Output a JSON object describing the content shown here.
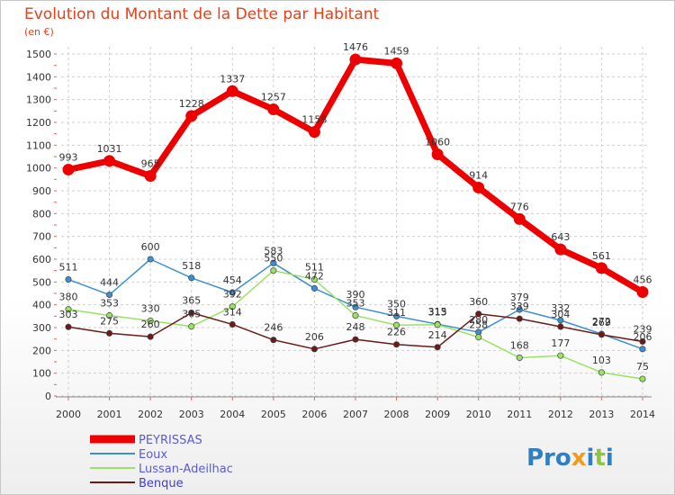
{
  "chart_data": {
    "type": "line",
    "title": "Evolution du Montant de la Dette par Habitant",
    "subtitle": "(en €)",
    "xlabel": "",
    "ylabel": "",
    "ylim": [
      0,
      1500
    ],
    "yticks": [
      0,
      100,
      200,
      300,
      400,
      500,
      600,
      700,
      800,
      900,
      1000,
      1100,
      1200,
      1300,
      1400,
      1500
    ],
    "categories": [
      "2000",
      "2001",
      "2002",
      "2003",
      "2004",
      "2005",
      "2006",
      "2007",
      "2008",
      "2009",
      "2010",
      "2011",
      "2012",
      "2013",
      "2014"
    ],
    "series": [
      {
        "name": "PEYRISSAS",
        "color": "#ee0000",
        "values": [
          993,
          1031,
          965,
          1228,
          1337,
          1257,
          1158,
          1476,
          1459,
          1060,
          914,
          776,
          643,
          561,
          456
        ]
      },
      {
        "name": "Eoux",
        "color": "#3d8fd1",
        "values": [
          511,
          444,
          600,
          518,
          454,
          583,
          472,
          390,
          350,
          315,
          280,
          379,
          332,
          272,
          206
        ]
      },
      {
        "name": "Lussan-Adeilhac",
        "color": "#99e265",
        "values": [
          380,
          353,
          330,
          305,
          392,
          550,
          511,
          353,
          311,
          313,
          258,
          168,
          177,
          103,
          75
        ]
      },
      {
        "name": "Benque",
        "color": "#6b1a1a",
        "values": [
          303,
          275,
          260,
          365,
          314,
          246,
          206,
          248,
          226,
          214,
          360,
          339,
          304,
          269,
          239
        ]
      }
    ]
  },
  "logo": {
    "text": "Proxiti"
  }
}
